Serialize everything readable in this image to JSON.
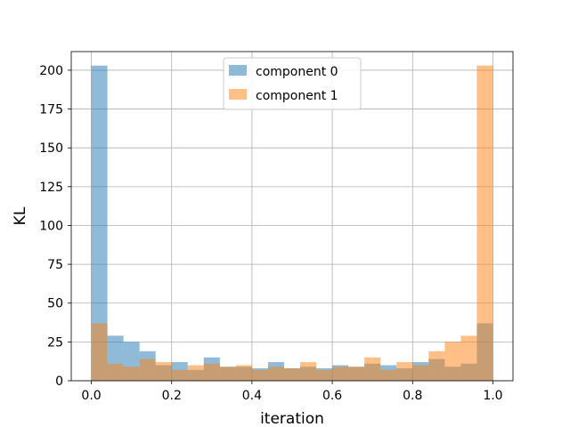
{
  "chart_data": {
    "type": "bar",
    "title": "",
    "xlabel": "iteration",
    "ylabel": "KL",
    "xlim": [
      -0.05,
      1.05
    ],
    "ylim": [
      0,
      212
    ],
    "xticks": [
      0.0,
      0.2,
      0.4,
      0.6,
      0.8,
      1.0
    ],
    "xtick_labels": [
      "0.0",
      "0.2",
      "0.4",
      "0.6",
      "0.8",
      "1.0"
    ],
    "yticks": [
      0,
      25,
      50,
      75,
      100,
      125,
      150,
      175,
      200
    ],
    "ytick_labels": [
      "0",
      "25",
      "50",
      "75",
      "100",
      "125",
      "150",
      "175",
      "200"
    ],
    "grid": true,
    "legend_position": "top-center",
    "bin_edges": [
      0.0,
      0.04,
      0.08,
      0.12,
      0.16,
      0.2,
      0.24,
      0.28,
      0.32,
      0.36,
      0.4,
      0.44,
      0.48,
      0.52,
      0.56,
      0.6,
      0.64,
      0.68,
      0.72,
      0.76,
      0.8,
      0.84,
      0.88,
      0.92,
      0.96,
      1.0
    ],
    "series": [
      {
        "name": "component 0",
        "color": "#1f77b4",
        "values": [
          203,
          29,
          25,
          19,
          10,
          12,
          7,
          15,
          9,
          9,
          8,
          12,
          8,
          9,
          8,
          10,
          9,
          11,
          10,
          8,
          12,
          14,
          9,
          11,
          37
        ]
      },
      {
        "name": "component 1",
        "color": "#ff7f0e",
        "values": [
          37,
          11,
          9,
          14,
          12,
          7,
          10,
          11,
          9,
          10,
          7,
          9,
          8,
          12,
          7,
          9,
          9,
          15,
          7,
          12,
          10,
          19,
          25,
          29,
          203
        ]
      }
    ]
  }
}
